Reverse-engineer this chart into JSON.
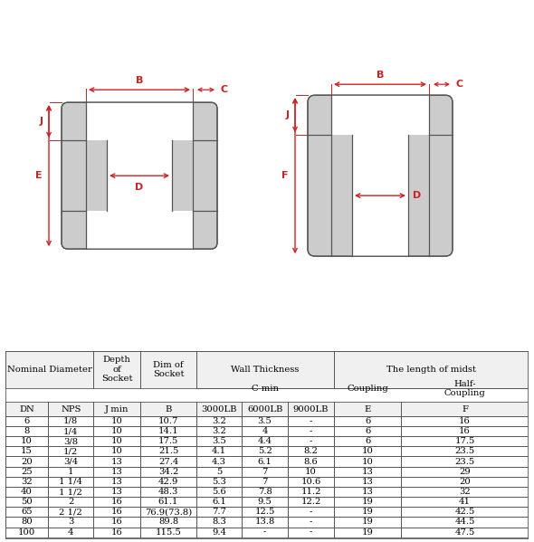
{
  "bg_color": "#ffffff",
  "rows": [
    [
      "6",
      "1/8",
      "10",
      "10.7",
      "3.2",
      "3.5",
      "-",
      "6",
      "16"
    ],
    [
      "8",
      "1/4",
      "10",
      "14.1",
      "3.2",
      "4",
      "-",
      "6",
      "16"
    ],
    [
      "10",
      "3/8",
      "10",
      "17.5",
      "3.5",
      "4.4",
      "-",
      "6",
      "17.5"
    ],
    [
      "15",
      "1/2",
      "10",
      "21.5",
      "4.1",
      "5.2",
      "8.2",
      "10",
      "23.5"
    ],
    [
      "20",
      "3/4",
      "13",
      "27.4",
      "4.3",
      "6.1",
      "8.6",
      "10",
      "23.5"
    ],
    [
      "25",
      "1",
      "13",
      "34.2",
      "5",
      "7",
      "10",
      "13",
      "29"
    ],
    [
      "32",
      "1 1/4",
      "13",
      "42.9",
      "5.3",
      "7",
      "10.6",
      "13",
      "20"
    ],
    [
      "40",
      "1 1/2",
      "13",
      "48.3",
      "5.6",
      "7.8",
      "11.2",
      "13",
      "32"
    ],
    [
      "50",
      "2",
      "16",
      "61.1",
      "6.1",
      "9.5",
      "12.2",
      "19",
      "41"
    ],
    [
      "65",
      "2 1/2",
      "16",
      "76.9(73.8)",
      "7.7",
      "12.5",
      "-",
      "19",
      "42.5"
    ],
    [
      "80",
      "3",
      "16",
      "89.8",
      "8.3",
      "13.8",
      "-",
      "19",
      "44.5"
    ],
    [
      "100",
      "4",
      "16",
      "115.5",
      "9.4",
      "-",
      "-",
      "19",
      "47.5"
    ]
  ],
  "sub_labels": [
    "DN",
    "NPS",
    "J min",
    "B",
    "3000LB",
    "6000LB",
    "9000LB",
    "E",
    "F"
  ],
  "red_color": "#cc2222",
  "gray_fill": "#cccccc",
  "line_color": "#555555",
  "hatch_color": "#bbbbbb",
  "table_line": "#555555"
}
